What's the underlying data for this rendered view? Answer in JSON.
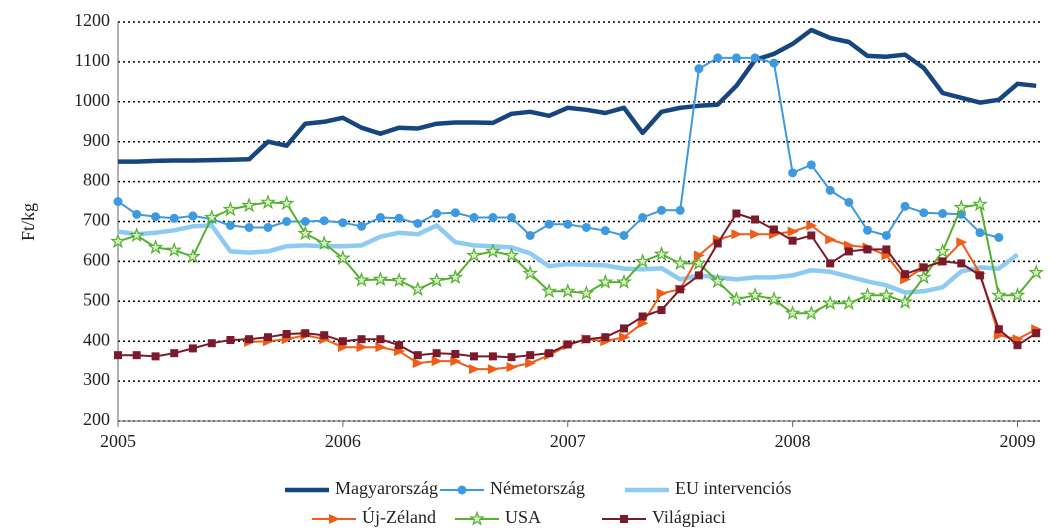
{
  "chart_data": {
    "type": "line",
    "ylabel": "Ft/kg",
    "x": [
      2005,
      2005.083,
      2005.167,
      2005.25,
      2005.333,
      2005.417,
      2005.5,
      2005.583,
      2005.667,
      2005.75,
      2005.833,
      2005.917,
      2006,
      2006.083,
      2006.167,
      2006.25,
      2006.333,
      2006.417,
      2006.5,
      2006.583,
      2006.667,
      2006.75,
      2006.833,
      2006.917,
      2007,
      2007.083,
      2007.167,
      2007.25,
      2007.333,
      2007.417,
      2007.5,
      2007.583,
      2007.667,
      2007.75,
      2007.833,
      2007.917,
      2008,
      2008.083,
      2008.167,
      2008.25,
      2008.333,
      2008.417,
      2008.5,
      2008.583,
      2008.667,
      2008.75,
      2008.833,
      2008.917,
      2009,
      2009.083
    ],
    "xlim": [
      2005,
      2009.1
    ],
    "xticks": [
      2005,
      2006,
      2007,
      2008,
      2009
    ],
    "ylim": [
      200,
      1200
    ],
    "yticks": [
      200,
      300,
      400,
      500,
      600,
      700,
      800,
      900,
      1000,
      1100,
      1200
    ],
    "grid": true,
    "legend": "bottom",
    "series": [
      {
        "name": "Magyarország",
        "color": "#17457f",
        "marker": "none",
        "values": [
          850,
          850,
          852,
          853,
          853,
          854,
          855,
          856,
          900,
          890,
          945,
          950,
          960,
          935,
          920,
          935,
          933,
          945,
          948,
          948,
          947,
          970,
          975,
          965,
          985,
          980,
          972,
          985,
          922,
          975,
          985,
          990,
          993,
          1040,
          1105,
          1120,
          1145,
          1180,
          1160,
          1150,
          1115,
          1113,
          1118,
          1085,
          1022,
          1010,
          998,
          1005,
          1045,
          1040
        ]
      },
      {
        "name": "Németország",
        "color": "#3d9ae0",
        "marker": "circle",
        "values": [
          750,
          718,
          712,
          708,
          714,
          706,
          690,
          685,
          685,
          700,
          700,
          702,
          697,
          688,
          710,
          708,
          695,
          720,
          722,
          710,
          710,
          710,
          665,
          693,
          693,
          685,
          677,
          665,
          710,
          728,
          728,
          1083,
          1110,
          1110,
          1110,
          1097,
          822,
          842,
          778,
          748,
          678,
          665,
          738,
          722,
          720,
          718,
          672,
          660,
          null,
          null
        ]
      },
      {
        "name": "EU intervenciós",
        "color": "#8ecbf2",
        "marker": "none",
        "values": [
          675,
          668,
          672,
          678,
          688,
          690,
          625,
          622,
          625,
          638,
          640,
          638,
          638,
          640,
          662,
          672,
          668,
          690,
          648,
          640,
          638,
          635,
          620,
          588,
          593,
          592,
          590,
          582,
          580,
          583,
          555,
          565,
          560,
          555,
          560,
          560,
          565,
          578,
          574,
          562,
          550,
          540,
          522,
          525,
          535,
          575,
          585,
          582,
          617,
          null
        ]
      },
      {
        "name": "Új-Zéland",
        "color": "#f25c19",
        "marker": "triangle",
        "values": [
          null,
          null,
          null,
          null,
          null,
          null,
          null,
          398,
          400,
          405,
          415,
          405,
          385,
          385,
          385,
          375,
          345,
          350,
          350,
          330,
          330,
          335,
          345,
          365,
          390,
          405,
          400,
          410,
          445,
          520,
          530,
          615,
          655,
          668,
          668,
          668,
          675,
          690,
          655,
          640,
          635,
          615,
          555,
          585,
          600,
          648,
          570,
          415,
          405,
          430
        ]
      },
      {
        "name": "USA",
        "color": "#55b030",
        "marker": "star",
        "values": [
          650,
          665,
          635,
          628,
          612,
          710,
          730,
          740,
          748,
          745,
          670,
          645,
          608,
          553,
          555,
          552,
          530,
          552,
          560,
          615,
          625,
          615,
          570,
          525,
          525,
          520,
          548,
          548,
          600,
          618,
          595,
          595,
          550,
          505,
          515,
          505,
          470,
          470,
          495,
          495,
          515,
          515,
          498,
          560,
          625,
          735,
          743,
          515,
          515,
          572
        ]
      },
      {
        "name": "Világpiaci",
        "color": "#7b1a2a",
        "marker": "square",
        "values": [
          365,
          365,
          362,
          370,
          382,
          395,
          403,
          405,
          410,
          418,
          420,
          415,
          400,
          405,
          405,
          390,
          365,
          370,
          368,
          362,
          362,
          360,
          365,
          370,
          392,
          405,
          410,
          432,
          462,
          478,
          530,
          565,
          645,
          720,
          705,
          680,
          652,
          665,
          595,
          625,
          630,
          630,
          568,
          585,
          600,
          595,
          565,
          430,
          390,
          420
        ]
      }
    ]
  }
}
